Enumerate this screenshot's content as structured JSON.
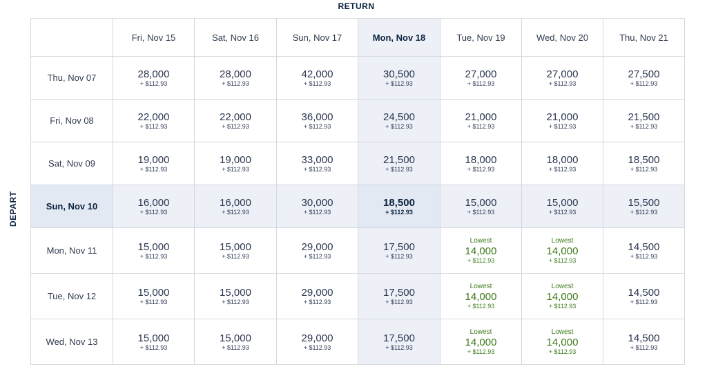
{
  "return_label": "RETURN",
  "depart_label": "DEPART",
  "return_dates": [
    "Fri, Nov 15",
    "Sat, Nov 16",
    "Sun, Nov 17",
    "Mon, Nov 18",
    "Tue, Nov 19",
    "Wed, Nov 20",
    "Thu, Nov 21"
  ],
  "depart_dates": [
    "Thu, Nov 07",
    "Fri, Nov 08",
    "Sat, Nov 09",
    "Sun, Nov 10",
    "Mon, Nov 11",
    "Tue, Nov 12",
    "Wed, Nov 13"
  ],
  "selected_return_index": 3,
  "selected_depart_index": 3,
  "lowest_tag": "Lowest",
  "tax": "+ $112.93",
  "points": [
    [
      "28,000",
      "28,000",
      "42,000",
      "30,500",
      "27,000",
      "27,000",
      "27,500"
    ],
    [
      "22,000",
      "22,000",
      "36,000",
      "24,500",
      "21,000",
      "21,000",
      "21,500"
    ],
    [
      "19,000",
      "19,000",
      "33,000",
      "21,500",
      "18,000",
      "18,000",
      "18,500"
    ],
    [
      "16,000",
      "16,000",
      "30,000",
      "18,500",
      "15,000",
      "15,000",
      "15,500"
    ],
    [
      "15,000",
      "15,000",
      "29,000",
      "17,500",
      "14,000",
      "14,000",
      "14,500"
    ],
    [
      "15,000",
      "15,000",
      "29,000",
      "17,500",
      "14,000",
      "14,000",
      "14,500"
    ],
    [
      "15,000",
      "15,000",
      "29,000",
      "17,500",
      "14,000",
      "14,000",
      "14,500"
    ]
  ],
  "lowest_cells": [
    [
      4,
      4
    ],
    [
      4,
      5
    ],
    [
      5,
      4
    ],
    [
      5,
      5
    ],
    [
      6,
      4
    ],
    [
      6,
      5
    ]
  ],
  "colors": {
    "navy": "#0c2340",
    "lowest_green": "#3d7a1a",
    "highlight": "#edf1f7",
    "border": "#d3d7de"
  }
}
